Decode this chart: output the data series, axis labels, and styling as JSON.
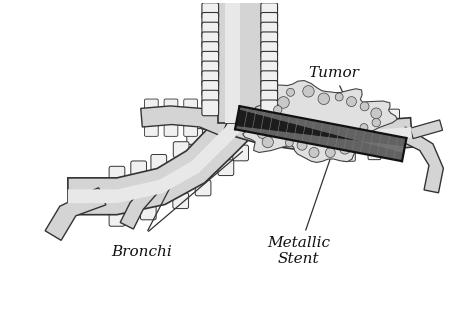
{
  "bg_color": "#ffffff",
  "tube_fill": "#d4d4d4",
  "tube_fill_light": "#e8e8e8",
  "tube_outline": "#333333",
  "cartilage_fill": "#f0f0f0",
  "cartilage_outline": "#333333",
  "stent_dark": "#111111",
  "stent_mesh": "#666666",
  "tumor_fill": "#e0e0e0",
  "tumor_outline": "#444444",
  "label_tumor": "Tumor",
  "label_bronchi": "Bronchi",
  "label_metallic": "Metallic",
  "label_stent": "Stent",
  "font_size": 10,
  "line_color": "#333333"
}
